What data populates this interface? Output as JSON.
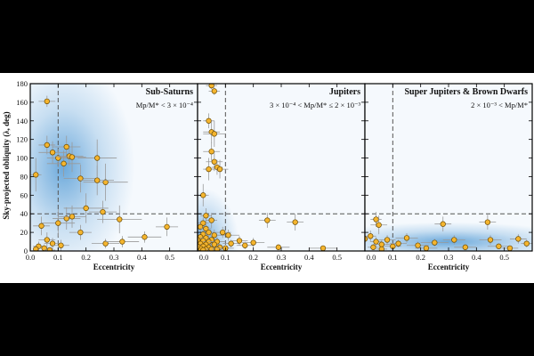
{
  "chart_data": {
    "type": "scatter",
    "ylabel": "Sky-projected obliquity (λ, deg)",
    "ylim": [
      0,
      180
    ],
    "yticks": [
      "0",
      "20",
      "40",
      "60",
      "80",
      "100",
      "120",
      "140",
      "160",
      "180"
    ],
    "reference_lines": {
      "eccentricity": 0.1,
      "obliquity": 40
    },
    "colors": {
      "point_fill": "#f5b52e",
      "point_edge": "#6b4a00",
      "error_bar": "#9a9a9a",
      "density": "#3f8fd0",
      "frame": "#000000",
      "guide": "#555555"
    },
    "panels": [
      {
        "title": "Sub-Saturns",
        "condition": "Mp/M* < 3 × 10⁻⁴",
        "xlabel": "Eccentricity",
        "xlim": [
          0,
          0.6
        ],
        "xticks": [
          "0.0",
          "0.1",
          "0.2",
          "0.3",
          "0.4",
          "0.5"
        ],
        "xtick_values": [
          0,
          0.1,
          0.2,
          0.3,
          0.4,
          0.5
        ],
        "density_peak": {
          "x": 0.12,
          "y": 90
        },
        "points": [
          {
            "x": 0.02,
            "y": 82,
            "xe": 0.02,
            "ye": 18
          },
          {
            "x": 0.06,
            "y": 161,
            "xe": 0.03,
            "ye": 6
          },
          {
            "x": 0.06,
            "y": 114,
            "xe": 0.03,
            "ye": 10
          },
          {
            "x": 0.08,
            "y": 106,
            "xe": 0.05,
            "ye": 12
          },
          {
            "x": 0.1,
            "y": 100,
            "xe": 0.04,
            "ye": 10
          },
          {
            "x": 0.12,
            "y": 94,
            "xe": 0.06,
            "ye": 14
          },
          {
            "x": 0.13,
            "y": 112,
            "xe": 0.05,
            "ye": 12
          },
          {
            "x": 0.14,
            "y": 102,
            "xe": 0.05,
            "ye": 10
          },
          {
            "x": 0.15,
            "y": 101,
            "xe": 0.05,
            "ye": 16
          },
          {
            "x": 0.18,
            "y": 78,
            "xe": 0.06,
            "ye": 15
          },
          {
            "x": 0.24,
            "y": 100,
            "xe": 0.07,
            "ye": 20
          },
          {
            "x": 0.27,
            "y": 74,
            "xe": 0.08,
            "ye": 20
          },
          {
            "x": 0.24,
            "y": 76,
            "xe": 0.06,
            "ye": 16
          },
          {
            "x": 0.2,
            "y": 46,
            "xe": 0.08,
            "ye": 16
          },
          {
            "x": 0.26,
            "y": 42,
            "xe": 0.05,
            "ye": 12
          },
          {
            "x": 0.32,
            "y": 34,
            "xe": 0.08,
            "ye": 15
          },
          {
            "x": 0.13,
            "y": 35,
            "xe": 0.05,
            "ye": 12
          },
          {
            "x": 0.15,
            "y": 37,
            "xe": 0.05,
            "ye": 12
          },
          {
            "x": 0.1,
            "y": 30,
            "xe": 0.06,
            "ye": 15
          },
          {
            "x": 0.04,
            "y": 27,
            "xe": 0.03,
            "ye": 10
          },
          {
            "x": 0.06,
            "y": 12,
            "xe": 0.03,
            "ye": 8
          },
          {
            "x": 0.03,
            "y": 5,
            "xe": 0.02,
            "ye": 5
          },
          {
            "x": 0.05,
            "y": 3,
            "xe": 0.02,
            "ye": 4
          },
          {
            "x": 0.08,
            "y": 8,
            "xe": 0.03,
            "ye": 6
          },
          {
            "x": 0.11,
            "y": 6,
            "xe": 0.03,
            "ye": 6
          },
          {
            "x": 0.18,
            "y": 20,
            "xe": 0.04,
            "ye": 8
          },
          {
            "x": 0.27,
            "y": 8,
            "xe": 0.05,
            "ye": 5
          },
          {
            "x": 0.33,
            "y": 10,
            "xe": 0.06,
            "ye": 6
          },
          {
            "x": 0.41,
            "y": 15,
            "xe": 0.06,
            "ye": 6
          },
          {
            "x": 0.49,
            "y": 26,
            "xe": 0.04,
            "ye": 10
          },
          {
            "x": 0.02,
            "y": 2,
            "xe": 0.01,
            "ye": 3
          },
          {
            "x": 0.07,
            "y": 1,
            "xe": 0.02,
            "ye": 3
          }
        ]
      },
      {
        "title": "Jupiters",
        "condition": "3 × 10⁻⁴ < Mp/M* ≤ 2 × 10⁻³",
        "xlabel": "Eccentricity",
        "xlim": [
          0,
          0.6
        ],
        "xticks": [
          "0.0",
          "0.1",
          "0.2",
          "0.3",
          "0.4",
          "0.5"
        ],
        "xtick_values": [
          0,
          0.1,
          0.2,
          0.3,
          0.4,
          0.5
        ],
        "density_peak": {
          "x": 0.02,
          "y": 10
        },
        "points": [
          {
            "x": 0.05,
            "y": 178,
            "xe": 0.02,
            "ye": 4
          },
          {
            "x": 0.06,
            "y": 172,
            "xe": 0.02,
            "ye": 4
          },
          {
            "x": 0.04,
            "y": 140,
            "xe": 0.02,
            "ye": 8
          },
          {
            "x": 0.05,
            "y": 128,
            "xe": 0.03,
            "ye": 12
          },
          {
            "x": 0.06,
            "y": 126,
            "xe": 0.04,
            "ye": 14
          },
          {
            "x": 0.05,
            "y": 107,
            "xe": 0.03,
            "ye": 10
          },
          {
            "x": 0.06,
            "y": 96,
            "xe": 0.03,
            "ye": 10
          },
          {
            "x": 0.07,
            "y": 90,
            "xe": 0.02,
            "ye": 8
          },
          {
            "x": 0.08,
            "y": 88,
            "xe": 0.03,
            "ye": 10
          },
          {
            "x": 0.04,
            "y": 88,
            "xe": 0.02,
            "ye": 12
          },
          {
            "x": 0.02,
            "y": 60,
            "xe": 0.02,
            "ye": 12
          },
          {
            "x": 0.03,
            "y": 38,
            "xe": 0.02,
            "ye": 8
          },
          {
            "x": 0.05,
            "y": 33,
            "xe": 0.02,
            "ye": 8
          },
          {
            "x": 0.02,
            "y": 30,
            "xe": 0.02,
            "ye": 6
          },
          {
            "x": 0.01,
            "y": 26,
            "xe": 0.01,
            "ye": 6
          },
          {
            "x": 0.03,
            "y": 24,
            "xe": 0.02,
            "ye": 6
          },
          {
            "x": 0.04,
            "y": 20,
            "xe": 0.02,
            "ye": 6
          },
          {
            "x": 0.02,
            "y": 18,
            "xe": 0.01,
            "ye": 5
          },
          {
            "x": 0.06,
            "y": 17,
            "xe": 0.03,
            "ye": 6
          },
          {
            "x": 0.01,
            "y": 15,
            "xe": 0.01,
            "ye": 4
          },
          {
            "x": 0.03,
            "y": 14,
            "xe": 0.02,
            "ye": 5
          },
          {
            "x": 0.05,
            "y": 12,
            "xe": 0.02,
            "ye": 5
          },
          {
            "x": 0.02,
            "y": 11,
            "xe": 0.01,
            "ye": 4
          },
          {
            "x": 0.04,
            "y": 10,
            "xe": 0.02,
            "ye": 4
          },
          {
            "x": 0.07,
            "y": 10,
            "xe": 0.03,
            "ye": 5
          },
          {
            "x": 0.01,
            "y": 8,
            "xe": 0.01,
            "ye": 3
          },
          {
            "x": 0.03,
            "y": 7,
            "xe": 0.02,
            "ye": 3
          },
          {
            "x": 0.06,
            "y": 7,
            "xe": 0.02,
            "ye": 4
          },
          {
            "x": 0.02,
            "y": 5,
            "xe": 0.01,
            "ye": 3
          },
          {
            "x": 0.04,
            "y": 4,
            "xe": 0.02,
            "ye": 3
          },
          {
            "x": 0.08,
            "y": 4,
            "xe": 0.03,
            "ye": 3
          },
          {
            "x": 0.01,
            "y": 3,
            "xe": 0.01,
            "ye": 2
          },
          {
            "x": 0.03,
            "y": 2,
            "xe": 0.01,
            "ye": 2
          },
          {
            "x": 0.05,
            "y": 2,
            "xe": 0.02,
            "ye": 2
          },
          {
            "x": 0.07,
            "y": 2,
            "xe": 0.02,
            "ye": 2
          },
          {
            "x": 0.1,
            "y": 3,
            "xe": 0.03,
            "ye": 3
          },
          {
            "x": 0.12,
            "y": 8,
            "xe": 0.03,
            "ye": 4
          },
          {
            "x": 0.15,
            "y": 11,
            "xe": 0.03,
            "ye": 5
          },
          {
            "x": 0.17,
            "y": 6,
            "xe": 0.03,
            "ye": 4
          },
          {
            "x": 0.2,
            "y": 9,
            "xe": 0.04,
            "ye": 5
          },
          {
            "x": 0.11,
            "y": 17,
            "xe": 0.04,
            "ye": 6
          },
          {
            "x": 0.09,
            "y": 20,
            "xe": 0.03,
            "ye": 6
          },
          {
            "x": 0.25,
            "y": 33,
            "xe": 0.03,
            "ye": 8
          },
          {
            "x": 0.35,
            "y": 31,
            "xe": 0.03,
            "ye": 9
          },
          {
            "x": 0.29,
            "y": 4,
            "xe": 0.04,
            "ye": 3
          },
          {
            "x": 0.45,
            "y": 3,
            "xe": 0.05,
            "ye": 3
          },
          {
            "x": 0.02,
            "y": 1,
            "xe": 0.01,
            "ye": 1
          },
          {
            "x": 0.0,
            "y": 12,
            "xe": 0.01,
            "ye": 4
          },
          {
            "x": 0.0,
            "y": 5,
            "xe": 0.01,
            "ye": 3
          }
        ]
      },
      {
        "title": "Super Jupiters & Brown Dwarfs",
        "condition": "2 × 10⁻³ < Mp/M*",
        "xlabel": "Eccentricity",
        "xlim": [
          0,
          0.6
        ],
        "xticks": [
          "0.0",
          "0.1",
          "0.2",
          "0.3",
          "0.4",
          "0.5"
        ],
        "xtick_values": [
          0,
          0.1,
          0.2,
          0.3,
          0.4,
          0.5
        ],
        "density_peak": {
          "x": 0.3,
          "y": 10
        },
        "points": [
          {
            "x": 0.04,
            "y": 34,
            "xe": 0.02,
            "ye": 8
          },
          {
            "x": 0.05,
            "y": 28,
            "xe": 0.03,
            "ye": 10
          },
          {
            "x": 0.02,
            "y": 16,
            "xe": 0.02,
            "ye": 6
          },
          {
            "x": 0.04,
            "y": 10,
            "xe": 0.02,
            "ye": 5
          },
          {
            "x": 0.06,
            "y": 7,
            "xe": 0.03,
            "ye": 5
          },
          {
            "x": 0.08,
            "y": 12,
            "xe": 0.03,
            "ye": 5
          },
          {
            "x": 0.03,
            "y": 4,
            "xe": 0.02,
            "ye": 3
          },
          {
            "x": 0.1,
            "y": 5,
            "xe": 0.03,
            "ye": 3
          },
          {
            "x": 0.12,
            "y": 8,
            "xe": 0.03,
            "ye": 4
          },
          {
            "x": 0.15,
            "y": 14,
            "xe": 0.04,
            "ye": 5
          },
          {
            "x": 0.19,
            "y": 6,
            "xe": 0.04,
            "ye": 4
          },
          {
            "x": 0.22,
            "y": 3,
            "xe": 0.04,
            "ye": 3
          },
          {
            "x": 0.25,
            "y": 9,
            "xe": 0.05,
            "ye": 4
          },
          {
            "x": 0.28,
            "y": 29,
            "xe": 0.03,
            "ye": 8
          },
          {
            "x": 0.32,
            "y": 12,
            "xe": 0.04,
            "ye": 5
          },
          {
            "x": 0.36,
            "y": 4,
            "xe": 0.04,
            "ye": 3
          },
          {
            "x": 0.44,
            "y": 31,
            "xe": 0.03,
            "ye": 8
          },
          {
            "x": 0.45,
            "y": 12,
            "xe": 0.04,
            "ye": 5
          },
          {
            "x": 0.48,
            "y": 5,
            "xe": 0.04,
            "ye": 3
          },
          {
            "x": 0.52,
            "y": 3,
            "xe": 0.03,
            "ye": 3
          },
          {
            "x": 0.55,
            "y": 13,
            "xe": 0.03,
            "ye": 5
          },
          {
            "x": 0.58,
            "y": 8,
            "xe": 0.02,
            "ye": 4
          },
          {
            "x": 0.0,
            "y": 13,
            "xe": 0.01,
            "ye": 4
          },
          {
            "x": 0.06,
            "y": 2,
            "xe": 0.02,
            "ye": 2
          }
        ]
      }
    ]
  }
}
